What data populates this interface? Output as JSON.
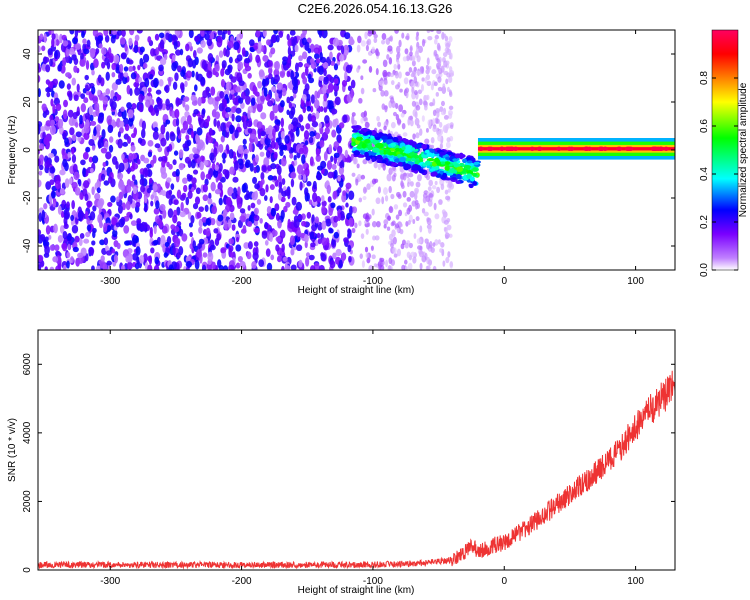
{
  "title": "C2E6.2026.054.16.13.G26",
  "chart_data": [
    {
      "type": "heatmap",
      "xlabel": "Height of straight line (km)",
      "ylabel": "Frequency (Hz)",
      "xlim": [
        -355,
        130
      ],
      "ylim": [
        -50,
        50
      ],
      "x_ticks": [
        -300,
        -200,
        -100,
        0,
        100
      ],
      "x_tick_labels": [
        "-300",
        "-200",
        "-100",
        "0",
        "100"
      ],
      "y_ticks": [
        -40,
        -20,
        0,
        20,
        40
      ],
      "y_tick_labels": [
        "-40",
        "-20",
        "0",
        "20",
        "40"
      ],
      "colorbar": {
        "label": "Normalized spectral amplitude",
        "range": [
          0,
          1
        ],
        "ticks": [
          0.0,
          0.2,
          0.4,
          0.6,
          0.8
        ],
        "tick_labels": [
          "0.0",
          "0.2",
          "0.4",
          "0.6",
          "0.8"
        ],
        "colormap": [
          "#ffffff",
          "#7a00ff",
          "#0000ff",
          "#00ffff",
          "#00ff00",
          "#ffff00",
          "#ff8000",
          "#ff0000",
          "#ff0060"
        ]
      },
      "regions": [
        {
          "x_range": [
            -355,
            -115
          ],
          "freq_range": [
            -50,
            50
          ],
          "amplitude": 0.05,
          "description": "broadband noise"
        },
        {
          "x_range": [
            -115,
            -40
          ],
          "freq_range": [
            -50,
            50
          ],
          "amplitude": 0.02,
          "description": "fading noise"
        },
        {
          "x_range": [
            -115,
            -20
          ],
          "freq_center": [
            4,
            -10
          ],
          "amplitude": 0.35,
          "description": "emerging signal"
        },
        {
          "x_range": [
            -20,
            130
          ],
          "freq_center": [
            1,
            0
          ],
          "amplitude": 0.9,
          "description": "strong carrier"
        }
      ]
    },
    {
      "type": "line",
      "xlabel": "Height of straight line (km)",
      "ylabel": "SNR (10 * v/v)",
      "xlim": [
        -355,
        130
      ],
      "ylim": [
        0,
        7000
      ],
      "x_ticks": [
        -300,
        -200,
        -100,
        0,
        100
      ],
      "x_tick_labels": [
        "-300",
        "-200",
        "-100",
        "0",
        "100"
      ],
      "y_ticks": [
        0,
        2000,
        4000,
        6000
      ],
      "y_tick_labels": [
        "0",
        "2000",
        "4000",
        "6000"
      ],
      "color": "#ee3333",
      "series": [
        {
          "x": [
            -355,
            -300,
            -250,
            -200,
            -150,
            -100,
            -60,
            -40,
            -30,
            -25,
            -20,
            -10,
            0,
            20,
            40,
            60,
            80,
            90,
            95,
            100,
            105,
            110,
            120,
            130
          ],
          "y": [
            150,
            150,
            150,
            150,
            150,
            160,
            200,
            300,
            500,
            800,
            500,
            700,
            800,
            1300,
            1900,
            2500,
            3200,
            3600,
            3900,
            4200,
            4300,
            4600,
            5000,
            5400
          ]
        }
      ]
    }
  ]
}
